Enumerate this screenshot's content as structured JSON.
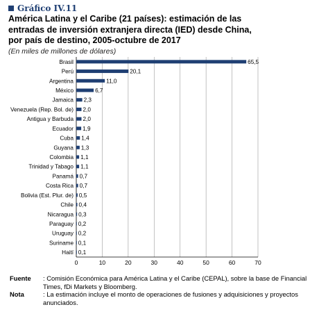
{
  "header": {
    "graph_label": "Gráfico IV.11",
    "title_lines": [
      "América Latina y el Caribe (21 países): estimación de las",
      "entradas de inversión extranjera directa (IED) desde China,",
      "por país de destino, 2005-octubre de 2017"
    ],
    "subtitle": "(En miles de millones de dólares)"
  },
  "chart_data": {
    "type": "bar",
    "orientation": "horizontal",
    "categories": [
      "Brasil",
      "Perú",
      "Argentina",
      "México",
      "Jamaica",
      "Venezuela (Rep. Bol. de)",
      "Antigua y Barbuda",
      "Ecuador",
      "Cuba",
      "Guyana",
      "Colombia",
      "Trinidad y Tabago",
      "Panamá",
      "Costa Rica",
      "Bolivia (Est. Plur. de)",
      "Chile",
      "Nicaragua",
      "Paraguay",
      "Uruguay",
      "Suriname",
      "Haití"
    ],
    "values": [
      65.5,
      20.1,
      11.0,
      6.7,
      2.3,
      2.0,
      2.0,
      1.9,
      1.4,
      1.3,
      1.1,
      1.1,
      0.7,
      0.7,
      0.5,
      0.4,
      0.3,
      0.2,
      0.2,
      0.1,
      0.1
    ],
    "value_labels": [
      "65,5",
      "20,1",
      "11,0",
      "6,7",
      "2,3",
      "2,0",
      "2,0",
      "1,9",
      "1,4",
      "1,3",
      "1,1",
      "1,1",
      "0,7",
      "0,7",
      "0,5",
      "0,4",
      "0,3",
      "0,2",
      "0,2",
      "0,1",
      "0,1"
    ],
    "xlim": [
      0,
      70
    ],
    "xticks": [
      "0",
      "10",
      "20",
      "30",
      "40",
      "50",
      "60",
      "70"
    ],
    "grid": true,
    "bar_color": "#1f3f73"
  },
  "notes": {
    "fuente_label": "Fuente",
    "fuente_text": ": Comisión Económica para América Latina y el Caribe (CEPAL), sobre la base de Financial Times, fDi Markets y Bloomberg.",
    "nota_label": "Nota",
    "nota_text": ": La estimación incluye el monto de operaciones de fusiones y adquisiciones y proyectos anunciados."
  }
}
